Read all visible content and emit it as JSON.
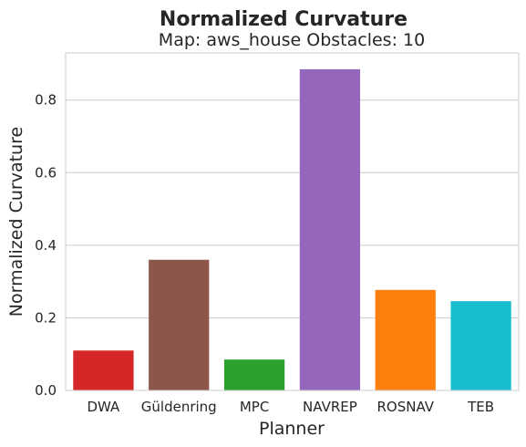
{
  "chart_data": {
    "type": "bar",
    "title": "Normalized Curvature",
    "subtitle": "Map: aws_house Obstacles: 10",
    "xlabel": "Planner",
    "ylabel": "Normalized Curvature",
    "categories": [
      "DWA",
      "Güldenring",
      "MPC",
      "NAVREP",
      "ROSNAV",
      "TEB"
    ],
    "values": [
      0.11,
      0.36,
      0.085,
      0.885,
      0.277,
      0.246
    ],
    "colors": [
      "#d62728",
      "#8c564b",
      "#2ca02c",
      "#9467bd",
      "#ff7f0e",
      "#17becf"
    ],
    "ylim": [
      0,
      0.93
    ],
    "yticks": [
      0.0,
      0.2,
      0.4,
      0.6,
      0.8
    ],
    "ytick_labels": [
      "0.0",
      "0.2",
      "0.4",
      "0.6",
      "0.8"
    ],
    "grid": "horizontal",
    "legend": "none"
  }
}
